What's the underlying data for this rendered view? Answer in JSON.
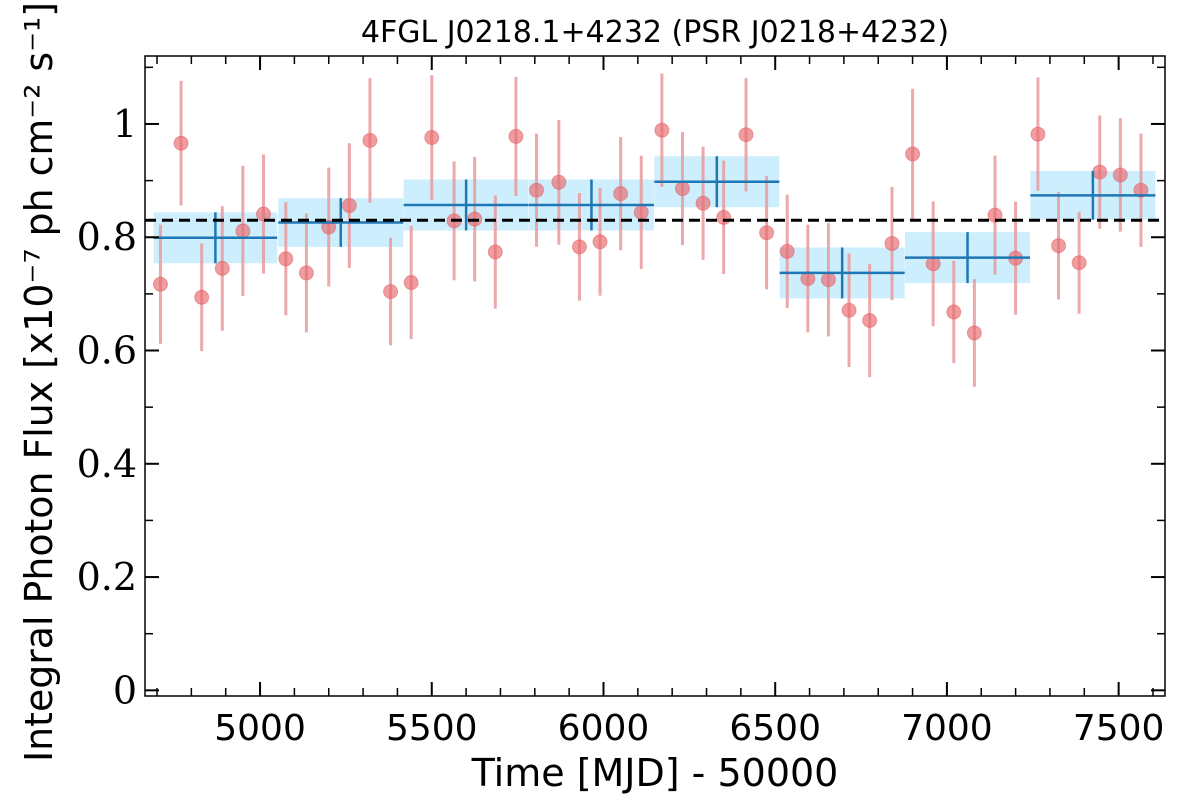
{
  "chart_data": {
    "type": "scatter",
    "title": "4FGL J0218.1+4232 (PSR J0218+4232)",
    "xlabel": "Time [MJD] - 50000",
    "ylabel": "Integral Photon Flux [x10⁻⁷ ph cm⁻² s⁻¹]",
    "xlim": [
      4665,
      7635
    ],
    "ylim": [
      -0.01,
      1.12
    ],
    "x_ticks": [
      5000,
      5500,
      6000,
      6500,
      7000,
      7500
    ],
    "x_tick_labels": [
      "5000",
      "5500",
      "6000",
      "6500",
      "7000",
      "7500"
    ],
    "y_ticks": [
      0,
      0.2,
      0.4,
      0.6,
      0.8,
      1.0
    ],
    "y_tick_labels": [
      "0",
      "0.2",
      "0.4",
      "0.6",
      "0.8",
      "1"
    ],
    "mean_flux": 0.83,
    "grid": false,
    "colors": {
      "points": "#e8686d",
      "error_bars": "#e79a9d",
      "bins": "#1f77b4",
      "bin_band": "#cdeefc",
      "mean_line": "#000000"
    },
    "series": [
      {
        "x": [
          4710,
          4770,
          4830,
          4890,
          4950,
          5010,
          5075,
          5135,
          5200,
          5260,
          5320,
          5380,
          5440,
          5500,
          5565,
          5625,
          5685,
          5745,
          5805,
          5870,
          5930,
          5990,
          6050,
          6110,
          6170,
          6230,
          6290,
          6350,
          6415,
          6475,
          6535,
          6595,
          6655,
          6715,
          6775,
          6840,
          6900,
          6960,
          7020,
          7080,
          7140,
          7200,
          7265,
          7325,
          7385,
          7445,
          7505,
          7565
        ],
        "y": [
          0.717,
          0.966,
          0.694,
          0.745,
          0.811,
          0.841,
          0.762,
          0.737,
          0.818,
          0.856,
          0.971,
          0.704,
          0.72,
          0.976,
          0.829,
          0.832,
          0.774,
          0.978,
          0.883,
          0.897,
          0.783,
          0.792,
          0.877,
          0.844,
          0.989,
          0.886,
          0.86,
          0.835,
          0.981,
          0.808,
          0.775,
          0.727,
          0.725,
          0.671,
          0.653,
          0.789,
          0.947,
          0.753,
          0.668,
          0.631,
          0.839,
          0.763,
          0.982,
          0.785,
          0.755,
          0.915,
          0.91,
          0.883
        ],
        "yerr": [
          0.105,
          0.11,
          0.095,
          0.11,
          0.115,
          0.105,
          0.1,
          0.105,
          0.105,
          0.11,
          0.11,
          0.095,
          0.1,
          0.11,
          0.105,
          0.11,
          0.1,
          0.105,
          0.1,
          0.11,
          0.095,
          0.095,
          0.1,
          0.1,
          0.1,
          0.1,
          0.1,
          0.1,
          0.1,
          0.1,
          0.1,
          0.095,
          0.1,
          0.1,
          0.1,
          0.1,
          0.115,
          0.11,
          0.09,
          0.095,
          0.105,
          0.1,
          0.1,
          0.095,
          0.09,
          0.1,
          0.1,
          0.1
        ]
      },
      {
        "x": [
          4870,
          5235,
          5600,
          5965,
          6330,
          6695,
          7060,
          7425
        ],
        "y": [
          0.799,
          0.826,
          0.857,
          0.857,
          0.898,
          0.737,
          0.764,
          0.874
        ],
        "xerr": [
          180,
          182,
          182,
          182,
          182,
          182,
          182,
          182
        ],
        "yerr": [
          0.045,
          0.043,
          0.045,
          0.045,
          0.045,
          0.045,
          0.045,
          0.043
        ]
      }
    ]
  }
}
